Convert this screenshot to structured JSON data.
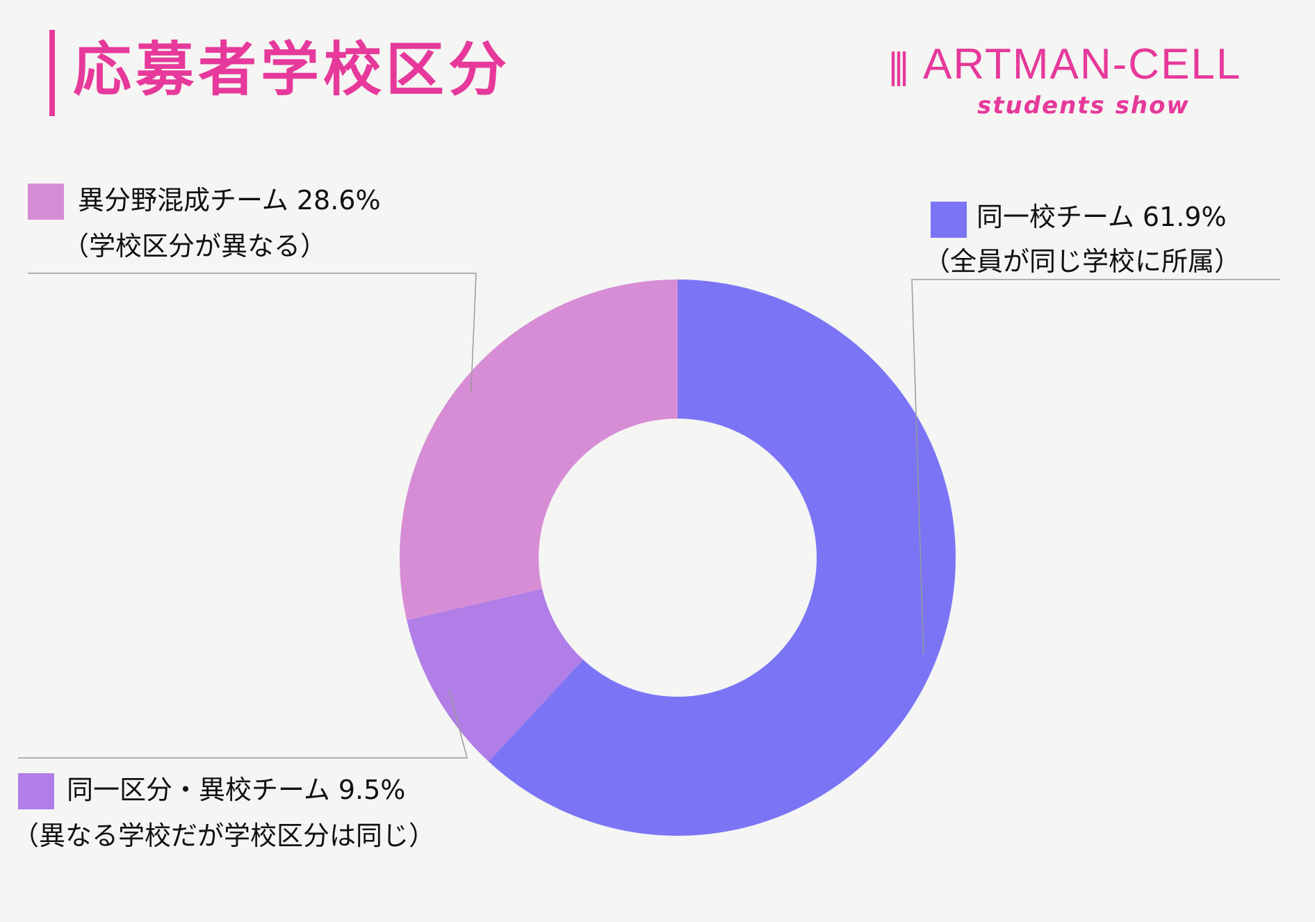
{
  "header": {
    "title": "応募者学校区分"
  },
  "logo": {
    "name": "ARTMAN-CELL",
    "tagline": "students show"
  },
  "chart_data": {
    "type": "pie",
    "donut": true,
    "categories": [
      "同一校チーム",
      "同一区分・異校チーム",
      "異分野混成チーム"
    ],
    "values": [
      61.9,
      9.5,
      28.6
    ],
    "unit": "%",
    "percent_labels": [
      "61.9%",
      "9.5%",
      "28.6%"
    ],
    "notes": [
      "（全員が同じ学校に所属）",
      "（異なる学校だが学校区分は同じ）",
      "（学校区分が異なる）"
    ],
    "colors": [
      "#7b75f5",
      "#b07ee6",
      "#d78dd6"
    ],
    "start_angle": "12 o'clock, clockwise"
  }
}
